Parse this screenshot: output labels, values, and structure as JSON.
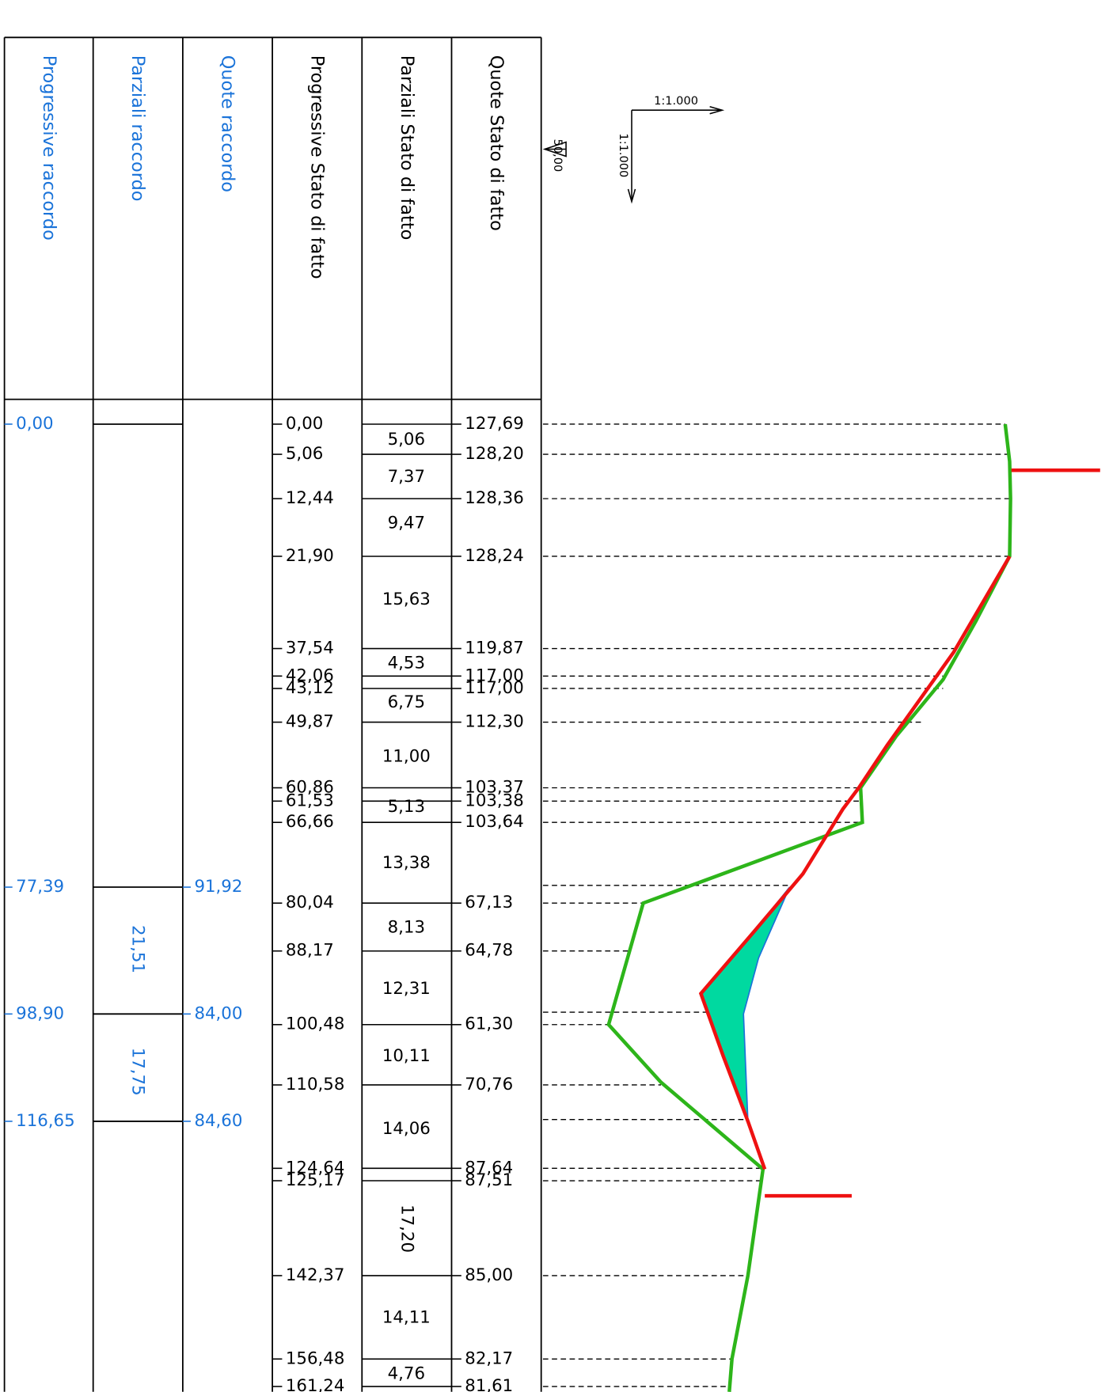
{
  "headers": [
    "Progressive raccordo",
    "Parziali raccordo",
    "Quote raccordo",
    "Progressive Stato di fatto",
    "Parziali Stato di fatto",
    "Quote Stato di fatto"
  ],
  "scale": {
    "horizontal": "1:1.000",
    "vertical": "1:1.000",
    "datum": "50,00"
  },
  "raccordo": {
    "progressive": [
      "0,00",
      "77,39",
      "98,90",
      "116,65"
    ],
    "parziali": [
      "21,51",
      "17,75"
    ],
    "quote": [
      "91,92",
      "84,00",
      "84,60"
    ]
  },
  "stato_di_fatto": {
    "progressive": [
      "0,00",
      "5,06",
      "12,44",
      "21,90",
      "37,54",
      "42,06",
      "43,12",
      "49,87",
      "60,86",
      "61,53",
      "66,66",
      "80,04",
      "88,17",
      "100,48",
      "110,58",
      "124,64",
      "125,17",
      "142,37",
      "156,48",
      "161,24"
    ],
    "parziali": [
      "5,06",
      "7,37",
      "9,47",
      "15,63",
      "4,53",
      "6,75",
      "11,00",
      "5,13",
      "13,38",
      "8,13",
      "12,31",
      "10,11",
      "14,06",
      "17,20",
      "14,11",
      "4,76"
    ],
    "quote": [
      "127,69",
      "128,20",
      "128,36",
      "128,24",
      "119,87",
      "117,00",
      "117,00",
      "112,30",
      "103,37",
      "103,38",
      "103,64",
      "67,13",
      "64,78",
      "61,30",
      "70,76",
      "87,64",
      "87,51",
      "85,00",
      "82,17",
      "81,61"
    ]
  }
}
